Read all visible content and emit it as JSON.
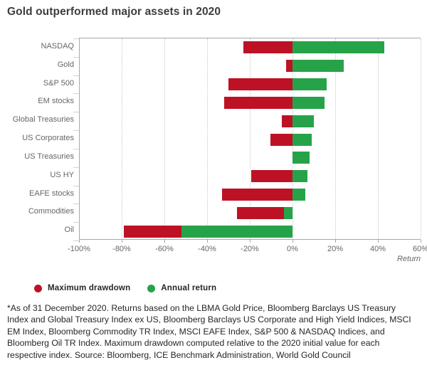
{
  "title": "Gold outperformed major assets in 2020",
  "colors": {
    "drawdown_red": "#bd1226",
    "return_green": "#26a349",
    "axis_line": "#a8a8a8",
    "gridline": "#c9c9c9",
    "label_gray": "#666666",
    "title_gray": "#3d3d3d",
    "text_dark": "#262626"
  },
  "legend": [
    {
      "label": "Maximum drawdown",
      "color_key": "drawdown_red"
    },
    {
      "label": "Annual return",
      "color_key": "return_green"
    }
  ],
  "chart_data": {
    "type": "bar",
    "orientation": "horizontal",
    "title": "Gold outperformed major assets in 2020",
    "categories": [
      "NASDAQ",
      "Gold",
      "S&P 500",
      "EM stocks",
      "Global Treasuries",
      "US Corporates",
      "US Treasuries",
      "US HY",
      "EAFE stocks",
      "Commodities",
      "Oil"
    ],
    "series": [
      {
        "name": "Maximum drawdown",
        "color_key": "drawdown_red",
        "values": [
          -23,
          -3,
          -30,
          -32,
          -5,
          -10.5,
          0,
          -19.5,
          -33,
          -26,
          -79
        ]
      },
      {
        "name": "Annual return",
        "color_key": "return_green",
        "values": [
          43,
          24,
          16,
          15,
          10,
          9,
          8,
          7,
          6,
          -4,
          -52
        ]
      }
    ],
    "xlabel": "Return",
    "xlim": [
      -100,
      60
    ],
    "x_tick_step": 20,
    "x_tick_labels": [
      "-100%",
      "-80%",
      "-60%",
      "-40%",
      "-20%",
      "0%",
      "20%",
      "40%",
      "60%"
    ],
    "grid": "vertical-dotted",
    "legend_position": "bottom-left"
  },
  "footnote_lines": [
    "*As of 31 December 2020. Returns based on the LBMA Gold Price, Bloomberg Barclays US Treasury",
    "Index and Global Treasury Index ex US, Bloomberg Barclays US Corporate and High Yield Indices, MSCI",
    "EM Index, Bloomberg Commodity TR Index, MSCI EAFE Index, S&P 500 & NASDAQ Indices, and",
    "Bloomberg Oil TR Index. Maximum drawdown computed relative to the 2020 initial value for each",
    "respective index. Source: Bloomberg, ICE Benchmark Administration, World Gold Council"
  ]
}
